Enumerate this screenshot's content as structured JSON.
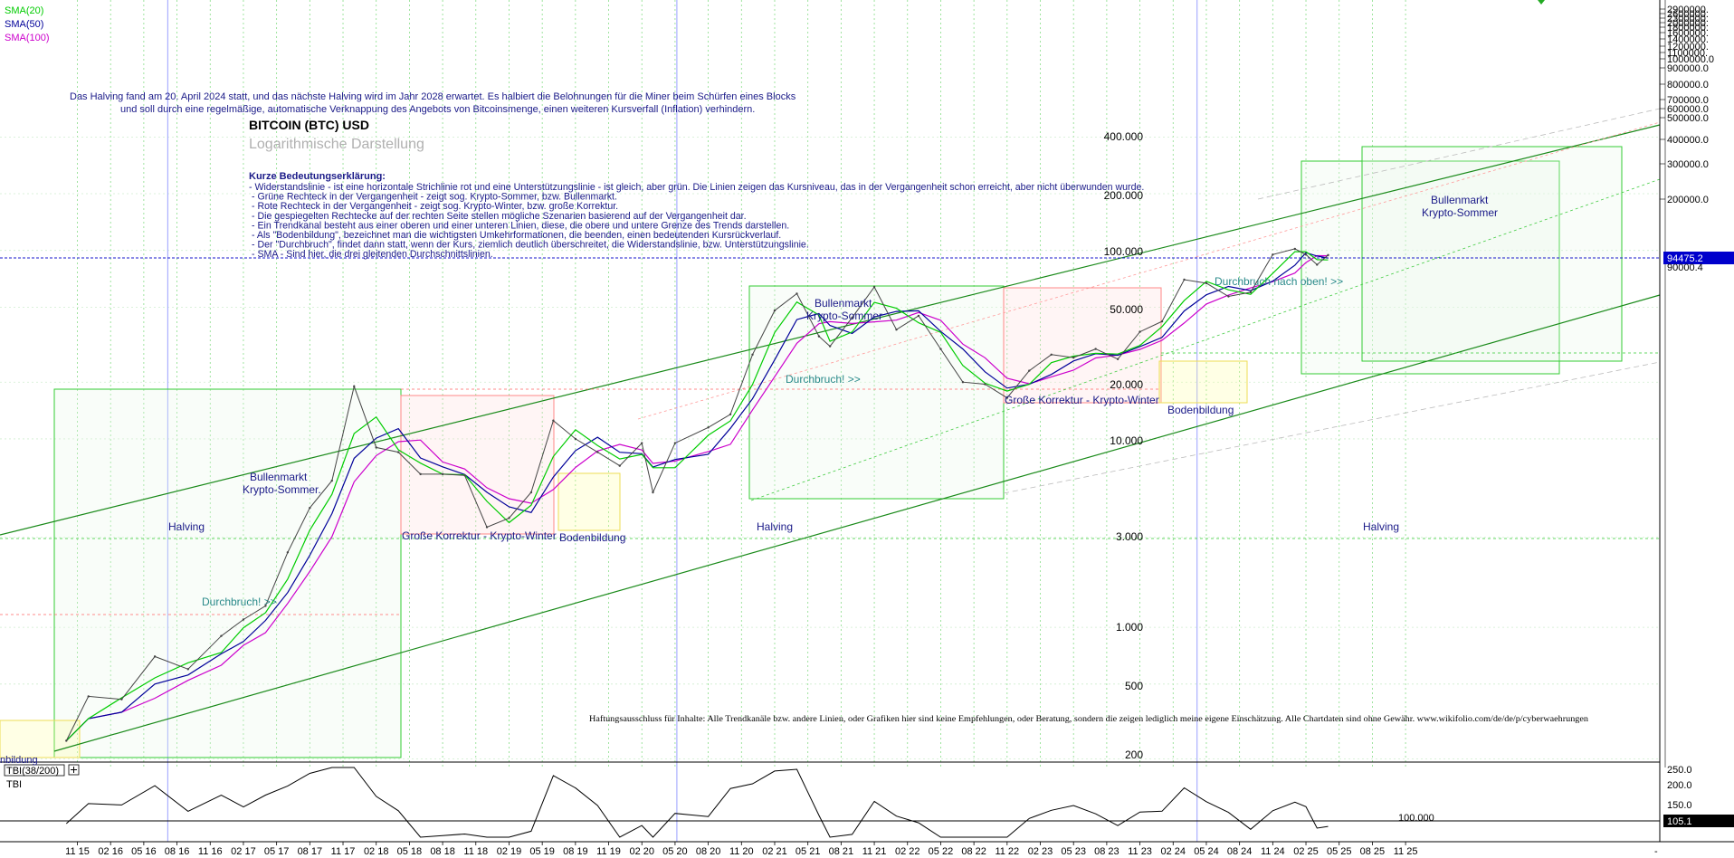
{
  "chart_data": {
    "type": "line",
    "title": "BITCOIN (BTC) USD",
    "subtitle": "Logarithmische Darstellung",
    "scale": "log",
    "ylim": [
      160,
      2900000
    ],
    "current_price": "94475.2",
    "prev_price_label": "90000.4",
    "legend": {
      "sma20": {
        "label": "SMA(20)",
        "color": "#00cc00"
      },
      "sma50": {
        "label": "SMA(50)",
        "color": "#000099"
      },
      "sma100": {
        "label": "SMA(100)",
        "color": "#cc00cc"
      }
    },
    "x_ticks": [
      "11 15",
      "02 16",
      "05 16",
      "08 16",
      "11 16",
      "02 17",
      "05 17",
      "08 17",
      "11 17",
      "02 18",
      "05 18",
      "08 18",
      "11 18",
      "02 19",
      "05 19",
      "08 19",
      "11 19",
      "02 20",
      "05 20",
      "08 20",
      "11 20",
      "02 21",
      "05 21",
      "08 21",
      "11 21",
      "02 22",
      "05 22",
      "08 22",
      "11 22",
      "02 23",
      "05 23",
      "08 23",
      "11 23",
      "02 24",
      "05 24",
      "08 24",
      "11 24",
      "02 25",
      "05 25",
      "08 25",
      "11 25"
    ],
    "x_end_marker": "-",
    "right_axis_labels": [
      "2900000.",
      "2600000.",
      "2300000.",
      "2000000.",
      "1800000.",
      "1600000.",
      "1400000.",
      "1200000.",
      "1100000.",
      "1000000.0",
      "900000.0",
      "800000.0",
      "700000.0",
      "600000.0",
      "500000.0",
      "400000.0",
      "300000.0",
      "200000.0"
    ],
    "inner_labels": [
      "400.000",
      "200.000",
      "100.000",
      "50.000",
      "20.000",
      "10.000",
      "3.000",
      "1.000",
      "500",
      "200"
    ],
    "price_series": [
      {
        "t": "10 15",
        "p": 250
      },
      {
        "t": "12 15",
        "p": 430
      },
      {
        "t": "03 16",
        "p": 415
      },
      {
        "t": "06 16",
        "p": 700
      },
      {
        "t": "09 16",
        "p": 600
      },
      {
        "t": "12 16",
        "p": 900
      },
      {
        "t": "02 17",
        "p": 1100
      },
      {
        "t": "04 17",
        "p": 1300
      },
      {
        "t": "06 17",
        "p": 2500
      },
      {
        "t": "08 17",
        "p": 4300
      },
      {
        "t": "10 17",
        "p": 6000
      },
      {
        "t": "12 17",
        "p": 19000
      },
      {
        "t": "02 18",
        "p": 9000
      },
      {
        "t": "04 18",
        "p": 8500
      },
      {
        "t": "06 18",
        "p": 6500
      },
      {
        "t": "08 18",
        "p": 6500
      },
      {
        "t": "10 18",
        "p": 6400
      },
      {
        "t": "12 18",
        "p": 3400
      },
      {
        "t": "02 19",
        "p": 3800
      },
      {
        "t": "04 19",
        "p": 5200
      },
      {
        "t": "06 19",
        "p": 12500
      },
      {
        "t": "08 19",
        "p": 10000
      },
      {
        "t": "10 19",
        "p": 8500
      },
      {
        "t": "12 19",
        "p": 7200
      },
      {
        "t": "02 20",
        "p": 9500
      },
      {
        "t": "03 20",
        "p": 5200
      },
      {
        "t": "05 20",
        "p": 9500
      },
      {
        "t": "08 20",
        "p": 11500
      },
      {
        "t": "10 20",
        "p": 13500
      },
      {
        "t": "12 20",
        "p": 28000
      },
      {
        "t": "02 21",
        "p": 48000
      },
      {
        "t": "04 21",
        "p": 59000
      },
      {
        "t": "06 21",
        "p": 35000
      },
      {
        "t": "07 21",
        "p": 31000
      },
      {
        "t": "09 21",
        "p": 44000
      },
      {
        "t": "11 21",
        "p": 64000
      },
      {
        "t": "01 22",
        "p": 38000
      },
      {
        "t": "03 22",
        "p": 45000
      },
      {
        "t": "05 22",
        "p": 30000
      },
      {
        "t": "07 22",
        "p": 20000
      },
      {
        "t": "09 22",
        "p": 19500
      },
      {
        "t": "11 22",
        "p": 16500
      },
      {
        "t": "01 23",
        "p": 23000
      },
      {
        "t": "03 23",
        "p": 28000
      },
      {
        "t": "05 23",
        "p": 27000
      },
      {
        "t": "07 23",
        "p": 30000
      },
      {
        "t": "09 23",
        "p": 26500
      },
      {
        "t": "11 23",
        "p": 37000
      },
      {
        "t": "01 24",
        "p": 42000
      },
      {
        "t": "03 24",
        "p": 70000
      },
      {
        "t": "05 24",
        "p": 67000
      },
      {
        "t": "07 24",
        "p": 57000
      },
      {
        "t": "09 24",
        "p": 60000
      },
      {
        "t": "11 24",
        "p": 95000
      },
      {
        "t": "01 25",
        "p": 102000
      },
      {
        "t": "02 25",
        "p": 95000
      },
      {
        "t": "03 25",
        "p": 84000
      },
      {
        "t": "04 25",
        "p": 94475
      }
    ],
    "indicator": {
      "label": "TBI(38/200)",
      "name": "TBI",
      "axis": [
        "250.0",
        "200.0",
        "150.0",
        "100.0"
      ],
      "value": "105.1",
      "level_label": "100.000"
    },
    "annotations": {
      "halving_text_1": "Das Halving fand am 20. April 2024 statt, und das nächste Halving wird im Jahr 2028 erwartet. Es halbiert die Belohnungen für die Miner beim Schürfen eines Blocks",
      "halving_text_2": "und soll durch eine regelmäßige, automatische Verknappung des Angebots von Bitcoinsmenge, einen weiteren Kursverfall (Inflation) verhindern.",
      "legend_title": "Kurze Bedeutungserklärung:",
      "legend_lines": [
        "- Widerstandslinie - ist eine horizontale Strichlinie rot und eine Unterstützungslinie - ist gleich, aber grün. Die Linien zeigen das Kursniveau, das in der Vergangenheit schon erreicht, aber nicht überwunden wurde.",
        "- Grüne Rechteck in der Vergangenheit - zeigt sog. Krypto-Sommer, bzw. Bullenmarkt.",
        "- Rote Rechteck in der Vergangenheit - zeigt sog. Krypto-Winter, bzw. große Korrektur.",
        "- Die gespiegelten Rechtecke auf der rechten Seite stellen mögliche Szenarien basierend auf der Vergangenheit dar.",
        "- Ein Trendkanal besteht aus einer oberen und einer unteren Linien, diese, die obere und untere Grenze des Trends darstellen.",
        "- Als \"Bodenbildung\", bezeichnet man die wichtigsten Umkehrformationen, die beenden, einen bedeutenden Kursrückverlauf.",
        "- Der \"Durchbruch\", findet dann statt, wenn der Kurs, ziemlich deutlich überschreitet, die Widerstandslinie, bzw. Unterstützungslinie.",
        "- SMA - Sind hier, die drei gleitenden Durchschnittslinien."
      ],
      "halving": "Halving",
      "bull1_l1": "Bullenmarkt",
      "bull1_l2": "Krypto-Sommer.",
      "bull2_l1": "Bullenmarkt",
      "bull2_l2": "Krypto-Sommer",
      "bull3_l1": "Bullenmarkt",
      "bull3_l2": "Krypto-Sommer",
      "korrektur1": "Große Korrektur - Krypto-Winter",
      "korrektur2": "Große Korrektur - Krypto-Winter",
      "boden": "Bodenbildung",
      "boden_partial": "nbildung",
      "durchbruch": "Durchbruch! >>",
      "durchbruch_oben": "Durchbruch nach oben! >>",
      "disclaimer": "Haftungsausschluss für Inhalte: Alle Trendkanäle bzw. andere Linien, oder Grafiken hier sind keine Empfehlungen, oder Beratung, sondern die zeigen lediglich meine eigene Einschätzung. Alle Chartdaten sind ohne Gewähr. www.wikifolio.com/de/de/p/cyberwaehrungen"
    },
    "colors": {
      "grid": "#88dd88",
      "halving_line": "#9aa0ff",
      "resistance": "#ff6666",
      "support": "#33cc33",
      "channel": "#1a8a1a",
      "annotation_blue": "#1a1a88",
      "annotation_teal": "#2a8a8a",
      "bull_box": "#33cc33",
      "bear_box": "#ff8888",
      "boden_box": "#ffff99"
    }
  }
}
